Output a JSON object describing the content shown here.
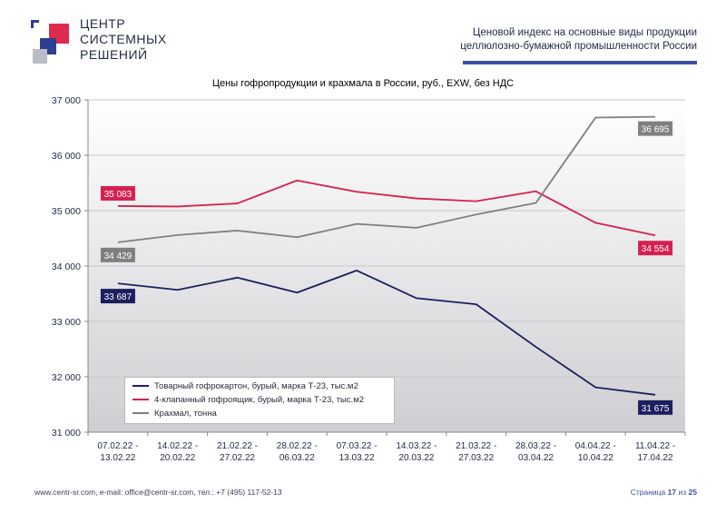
{
  "header": {
    "logo_lines": [
      "ЦЕНТР",
      "СИСТЕМНЫХ",
      "РЕШЕНИЙ"
    ],
    "title_line1": "Ценовой индекс на основные виды продукции",
    "title_line2": "целлюлозно-бумажной промышленности России"
  },
  "colors": {
    "series1": "#1c1f5e",
    "series2": "#d6204e",
    "series3": "#7f7f7f",
    "accent": "#3a4fa0",
    "logo_red": "#e0294f",
    "logo_blue": "#2e3f8f",
    "logo_gray": "#b9bcc6"
  },
  "chart_data": {
    "type": "line",
    "title": "Цены гофропродукции и крахмала в России, руб., EXW, без НДС",
    "categories": [
      [
        "07.02.22 -",
        "13.02.22"
      ],
      [
        "14.02.22 -",
        "20.02.22"
      ],
      [
        "21.02.22 -",
        "27.02.22"
      ],
      [
        "28.02.22 -",
        "06.03.22"
      ],
      [
        "07.03.22 -",
        "13.03.22"
      ],
      [
        "14.03.22 -",
        "20.03.22"
      ],
      [
        "21.03.22 -",
        "27.03.22"
      ],
      [
        "28.03.22 -",
        "03.04.22"
      ],
      [
        "04.04.22 -",
        "10.04.22"
      ],
      [
        "11.04.22 -",
        "17.04.22"
      ]
    ],
    "ylim": [
      31000,
      37000
    ],
    "yticks": [
      31000,
      32000,
      33000,
      34000,
      35000,
      36000,
      37000
    ],
    "ytick_labels": [
      "31 000",
      "32 000",
      "33 000",
      "34 000",
      "35 000",
      "36 000",
      "37 000"
    ],
    "series": [
      {
        "name": "Товарный гофрокартон, бурый, марка Т-23, тыс.м2",
        "values": [
          33687,
          33570,
          33790,
          33520,
          33920,
          33420,
          33310,
          32540,
          31810,
          31675
        ],
        "first_label": "33 687",
        "last_label": "31 675"
      },
      {
        "name": "4-клапанный гофроящик, бурый, марка Т-23, тыс.м2",
        "values": [
          35083,
          35075,
          35130,
          35545,
          35340,
          35220,
          35170,
          35350,
          34780,
          34554
        ],
        "first_label": "35 083",
        "last_label": "34 554"
      },
      {
        "name": "Крахмал, тонна",
        "values": [
          34429,
          34560,
          34640,
          34520,
          34760,
          34690,
          34930,
          35140,
          36680,
          36695
        ],
        "first_label": "34 429",
        "last_label": "36 695"
      }
    ],
    "legend_position": "bottom-left",
    "grid": true
  },
  "footer": {
    "contacts": "www.centr-sr.com, e-mail: office@centr-sr.com, тел.: +7 (495) 117-52-13",
    "page_prefix": "Страница",
    "page_current": "17",
    "page_sep": "из",
    "page_total": "25"
  }
}
